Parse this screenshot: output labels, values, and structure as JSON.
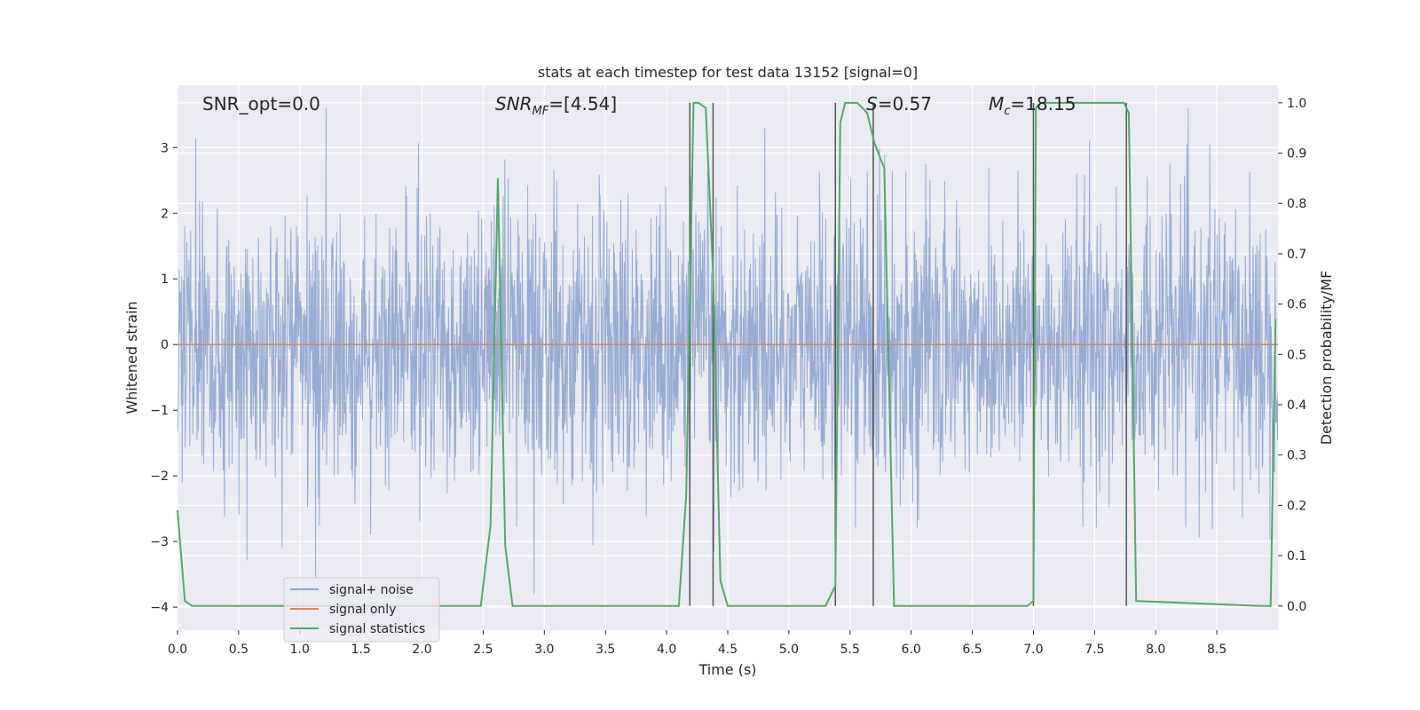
{
  "chart_data": {
    "type": "line",
    "title": "stats at each timestep for test data 13152 [signal=0]",
    "xlabel": "Time (s)",
    "ylabel_left": "Whitened strain",
    "ylabel_right": "Detection probability/MF",
    "xlim": [
      0.0,
      9.0
    ],
    "ylim_left": [
      -4.35,
      3.95
    ],
    "ylim_right": [
      -0.048,
      1.035
    ],
    "x_ticks": [
      "0.0",
      "0.5",
      "1.0",
      "1.5",
      "2.0",
      "2.5",
      "3.0",
      "3.5",
      "4.0",
      "4.5",
      "5.0",
      "5.5",
      "6.0",
      "6.5",
      "7.0",
      "7.5",
      "8.0",
      "8.5"
    ],
    "y_left_ticks": [
      "3",
      "2",
      "1",
      "0",
      "−1",
      "−2",
      "−3",
      "−4"
    ],
    "y_right_ticks": [
      "1.0",
      "0.9",
      "0.8",
      "0.7",
      "0.6",
      "0.5",
      "0.4",
      "0.3",
      "0.2",
      "0.1",
      "0.0"
    ],
    "grid": true,
    "legend_position": "lower-left",
    "annotations": {
      "snr_opt": "SNR_opt=0.0",
      "snr_mf_main": "SNR",
      "snr_mf_sub": "MF",
      "snr_mf_rest": "=[4.54]",
      "s_main": "S",
      "s_rest": "=0.57",
      "mc_main": "M",
      "mc_sub": "c",
      "mc_rest": "=18.15"
    },
    "series": [
      {
        "name": "signal+ noise",
        "color": "#8fa5cf",
        "noise_amplitude_std": 1.0,
        "note_values": "dense whitened noise spanning roughly -3.8 to 3.6"
      },
      {
        "name": "signal only",
        "color": "#dd8452",
        "x": [
          0.0,
          9.0
        ],
        "y": [
          0.0,
          0.0
        ]
      },
      {
        "name": "signal statistics",
        "color": "#55a868",
        "axis": "right",
        "x": [
          0.0,
          0.06,
          0.12,
          2.48,
          2.56,
          2.62,
          2.68,
          2.74,
          4.1,
          4.16,
          4.22,
          4.26,
          4.32,
          4.38,
          4.44,
          4.5,
          5.3,
          5.38,
          5.42,
          5.46,
          5.56,
          5.64,
          5.7,
          5.78,
          5.86,
          6.95,
          7.0,
          7.02,
          7.06,
          7.74,
          7.78,
          7.84,
          8.86,
          8.94,
          8.98
        ],
        "y": [
          0.19,
          0.01,
          0.0,
          0.0,
          0.16,
          0.85,
          0.12,
          0.0,
          0.0,
          0.22,
          1.0,
          1.0,
          0.99,
          0.66,
          0.05,
          0.0,
          0.0,
          0.04,
          0.96,
          1.0,
          1.0,
          0.98,
          0.92,
          0.87,
          0.0,
          0.0,
          0.01,
          0.99,
          1.0,
          1.0,
          0.98,
          0.01,
          0.0,
          0.0,
          0.57
        ]
      }
    ],
    "vlines_x": [
      4.19,
      4.38,
      5.38,
      5.69,
      7.0,
      7.76
    ]
  },
  "legend": {
    "items": [
      {
        "label": "signal+ noise",
        "color": "#8fa5cf"
      },
      {
        "label": "signal only",
        "color": "#dd8452"
      },
      {
        "label": "signal statistics",
        "color": "#55a868"
      }
    ]
  }
}
